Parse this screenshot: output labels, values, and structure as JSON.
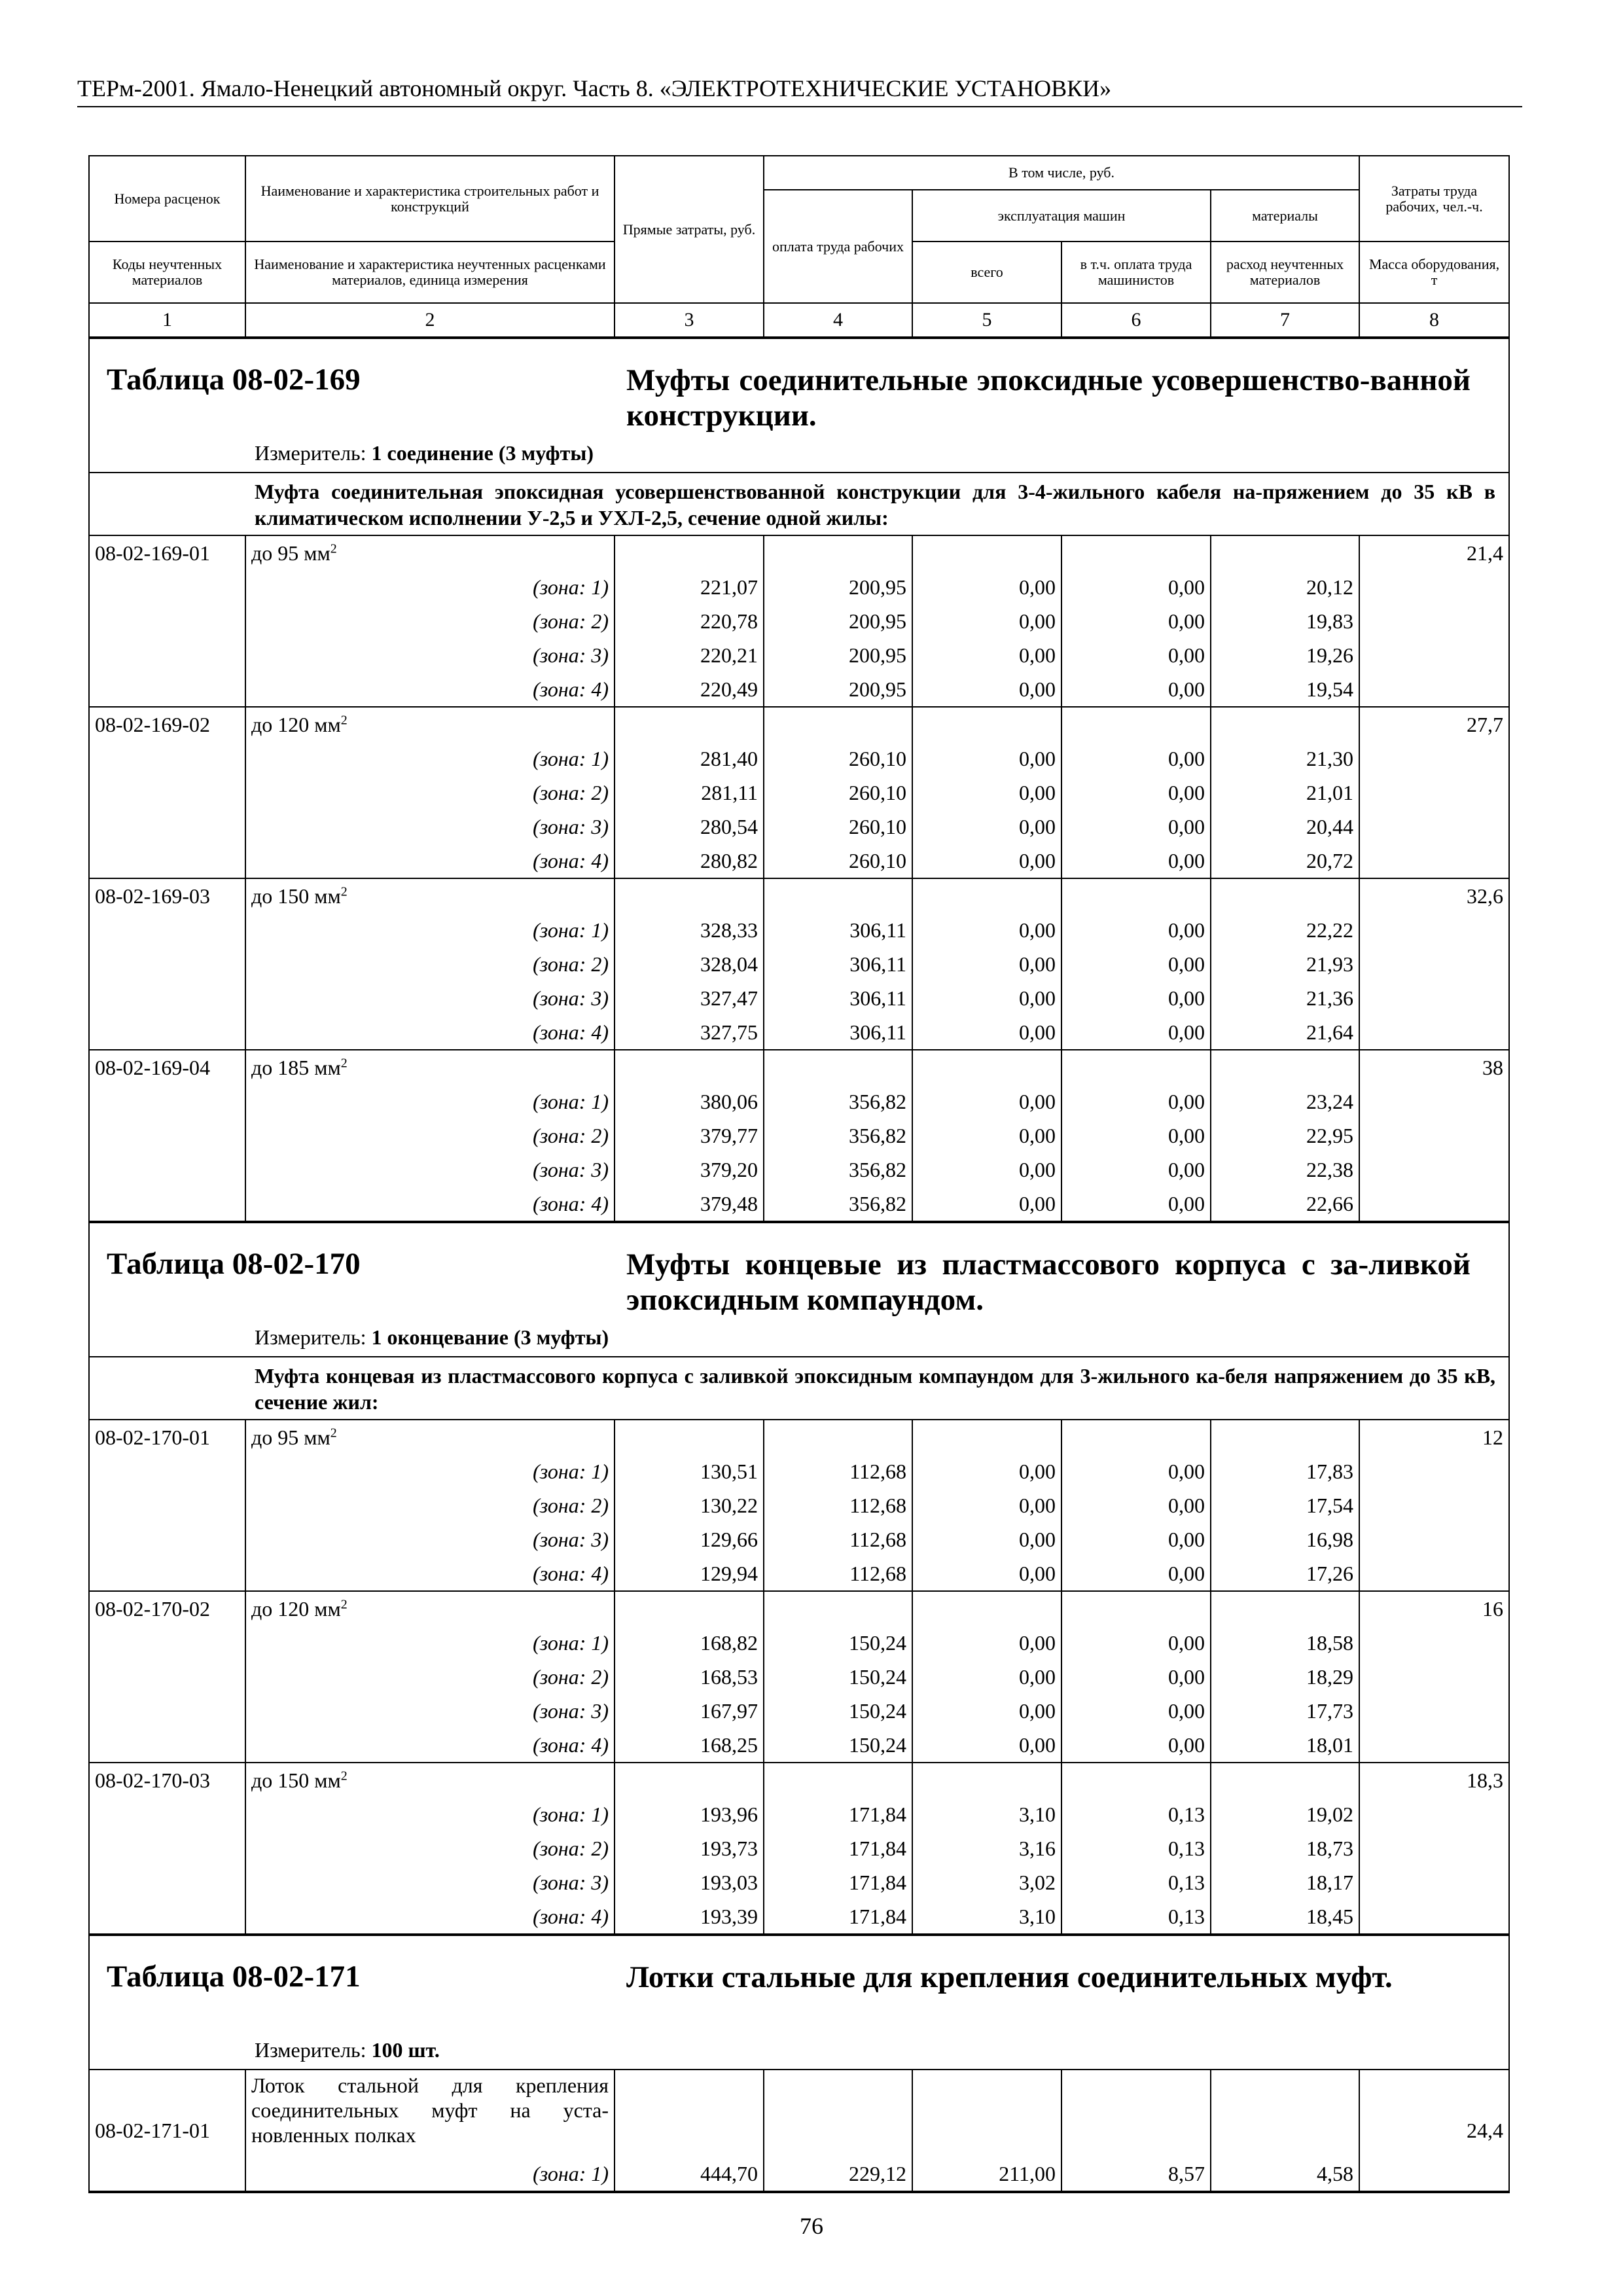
{
  "header": {
    "title": "ТЕРм-2001. Ямало-Ненецкий автономный округ. Часть 8. «ЭЛЕКТРОТЕХНИЧЕСКИЕ УСТАНОВКИ»"
  },
  "columns": {
    "c1_top": "Номера расценок",
    "c1_bottom": "Коды неучтенных материалов",
    "c2_top": "Наименование и характеристика строительных работ и конструкций",
    "c2_bottom": "Наименование и характеристика неучтенных расценками материалов, единица измерения",
    "c3": "Прямые затраты, руб.",
    "group": "В том числе, руб.",
    "c4": "оплата труда рабочих",
    "machines": "эксплуатация машин",
    "c5": "всего",
    "c6": "в т.ч. оплата труда машинистов",
    "materials": "материалы",
    "c7": "расход неучтенных материалов",
    "c8_top": "Затраты труда рабочих, чел.-ч.",
    "c8_bottom": "Масса оборудования, т",
    "numbers": [
      "1",
      "2",
      "3",
      "4",
      "5",
      "6",
      "7",
      "8"
    ]
  },
  "tables": [
    {
      "number": "Таблица 08-02-169",
      "title": "Муфты соединительные эпоксидные усовершенство-ванной конструкции.",
      "measure_label": "Измеритель:",
      "measure": "1 соединение (3 муфты)",
      "description": "Муфта соединительная эпоксидная усовершенствованной конструкции для 3-4-жильного кабеля на-пряжением до 35 кВ в климатическом исполнении У-2,5 и УХЛ-2,5, сечение одной жилы:",
      "items": [
        {
          "code": "08-02-169-01",
          "name": "до 95 мм",
          "sup": "2",
          "labor": "21,4",
          "zones": [
            [
              "(зона: 1)",
              "221,07",
              "200,95",
              "0,00",
              "0,00",
              "20,12"
            ],
            [
              "(зона: 2)",
              "220,78",
              "200,95",
              "0,00",
              "0,00",
              "19,83"
            ],
            [
              "(зона: 3)",
              "220,21",
              "200,95",
              "0,00",
              "0,00",
              "19,26"
            ],
            [
              "(зона: 4)",
              "220,49",
              "200,95",
              "0,00",
              "0,00",
              "19,54"
            ]
          ]
        },
        {
          "code": "08-02-169-02",
          "name": "до 120 мм",
          "sup": "2",
          "labor": "27,7",
          "zones": [
            [
              "(зона: 1)",
              "281,40",
              "260,10",
              "0,00",
              "0,00",
              "21,30"
            ],
            [
              "(зона: 2)",
              "281,11",
              "260,10",
              "0,00",
              "0,00",
              "21,01"
            ],
            [
              "(зона: 3)",
              "280,54",
              "260,10",
              "0,00",
              "0,00",
              "20,44"
            ],
            [
              "(зона: 4)",
              "280,82",
              "260,10",
              "0,00",
              "0,00",
              "20,72"
            ]
          ]
        },
        {
          "code": "08-02-169-03",
          "name": "до 150 мм",
          "sup": "2",
          "labor": "32,6",
          "zones": [
            [
              "(зона: 1)",
              "328,33",
              "306,11",
              "0,00",
              "0,00",
              "22,22"
            ],
            [
              "(зона: 2)",
              "328,04",
              "306,11",
              "0,00",
              "0,00",
              "21,93"
            ],
            [
              "(зона: 3)",
              "327,47",
              "306,11",
              "0,00",
              "0,00",
              "21,36"
            ],
            [
              "(зона: 4)",
              "327,75",
              "306,11",
              "0,00",
              "0,00",
              "21,64"
            ]
          ]
        },
        {
          "code": "08-02-169-04",
          "name": "до 185 мм",
          "sup": "2",
          "labor": "38",
          "zones": [
            [
              "(зона: 1)",
              "380,06",
              "356,82",
              "0,00",
              "0,00",
              "23,24"
            ],
            [
              "(зона: 2)",
              "379,77",
              "356,82",
              "0,00",
              "0,00",
              "22,95"
            ],
            [
              "(зона: 3)",
              "379,20",
              "356,82",
              "0,00",
              "0,00",
              "22,38"
            ],
            [
              "(зона: 4)",
              "379,48",
              "356,82",
              "0,00",
              "0,00",
              "22,66"
            ]
          ]
        }
      ]
    },
    {
      "number": "Таблица 08-02-170",
      "title": "Муфты концевые из пластмассового корпуса с за-ливкой эпоксидным компаундом.",
      "measure_label": "Измеритель:",
      "measure": "1 оконцевание (3 муфты)",
      "description": "Муфта концевая из пластмассового корпуса с заливкой эпоксидным компаундом для 3-жильного ка-беля напряжением до 35 кВ, сечение жил:",
      "items": [
        {
          "code": "08-02-170-01",
          "name": "до 95 мм",
          "sup": "2",
          "labor": "12",
          "zones": [
            [
              "(зона: 1)",
              "130,51",
              "112,68",
              "0,00",
              "0,00",
              "17,83"
            ],
            [
              "(зона: 2)",
              "130,22",
              "112,68",
              "0,00",
              "0,00",
              "17,54"
            ],
            [
              "(зона: 3)",
              "129,66",
              "112,68",
              "0,00",
              "0,00",
              "16,98"
            ],
            [
              "(зона: 4)",
              "129,94",
              "112,68",
              "0,00",
              "0,00",
              "17,26"
            ]
          ]
        },
        {
          "code": "08-02-170-02",
          "name": "до 120 мм",
          "sup": "2",
          "labor": "16",
          "zones": [
            [
              "(зона: 1)",
              "168,82",
              "150,24",
              "0,00",
              "0,00",
              "18,58"
            ],
            [
              "(зона: 2)",
              "168,53",
              "150,24",
              "0,00",
              "0,00",
              "18,29"
            ],
            [
              "(зона: 3)",
              "167,97",
              "150,24",
              "0,00",
              "0,00",
              "17,73"
            ],
            [
              "(зона: 4)",
              "168,25",
              "150,24",
              "0,00",
              "0,00",
              "18,01"
            ]
          ]
        },
        {
          "code": "08-02-170-03",
          "name": "до 150 мм",
          "sup": "2",
          "labor": "18,3",
          "zones": [
            [
              "(зона: 1)",
              "193,96",
              "171,84",
              "3,10",
              "0,13",
              "19,02"
            ],
            [
              "(зона: 2)",
              "193,73",
              "171,84",
              "3,16",
              "0,13",
              "18,73"
            ],
            [
              "(зона: 3)",
              "193,03",
              "171,84",
              "3,02",
              "0,13",
              "18,17"
            ],
            [
              "(зона: 4)",
              "193,39",
              "171,84",
              "3,10",
              "0,13",
              "18,45"
            ]
          ]
        }
      ]
    },
    {
      "number": "Таблица 08-02-171",
      "title": "Лотки стальные для крепления соединительных муфт.",
      "measure_label": "Измеритель:",
      "measure": "100 шт.",
      "single": {
        "code": "08-02-171-01",
        "name": "Лоток стальной для крепления соединительных муфт на уста-новленных полках",
        "labor": "24,4",
        "zone": [
          "(зона: 1)",
          "444,70",
          "229,12",
          "211,00",
          "8,57",
          "4,58"
        ]
      }
    }
  ],
  "page_number": "76"
}
